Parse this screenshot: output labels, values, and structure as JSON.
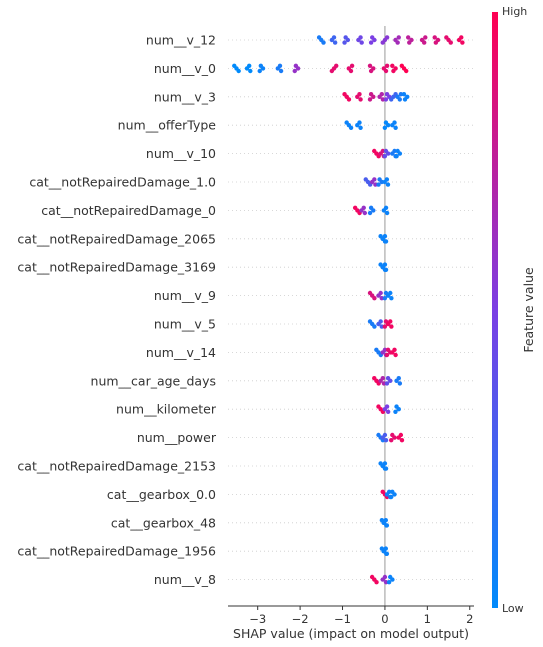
{
  "chart_data": {
    "type": "scatter",
    "subtype": "shap-beeswarm",
    "title": "",
    "xlabel": "SHAP value (impact on model output)",
    "xlim": [
      -3.7,
      2.1
    ],
    "xticks": [
      -3,
      -2,
      -1,
      0,
      1,
      2
    ],
    "colorbar": {
      "label": "Feature value",
      "high_label": "High",
      "low_label": "Low",
      "high_color": "#ff0052",
      "low_color": "#008afb"
    },
    "features": [
      {
        "name": "num__v_12",
        "points": [
          [
            -1.5,
            0.1
          ],
          [
            -1.2,
            0.25
          ],
          [
            -0.9,
            0.35
          ],
          [
            -0.6,
            0.45
          ],
          [
            -0.3,
            0.5
          ],
          [
            0,
            0.55
          ],
          [
            0.3,
            0.65
          ],
          [
            0.6,
            0.75
          ],
          [
            0.9,
            0.8
          ],
          [
            1.2,
            0.85
          ],
          [
            1.5,
            0.9
          ],
          [
            1.8,
            0.95
          ]
        ]
      },
      {
        "name": "num__v_0",
        "points": [
          [
            -3.5,
            0.0
          ],
          [
            -3.2,
            0.0
          ],
          [
            -2.9,
            0.05
          ],
          [
            -2.5,
            0.1
          ],
          [
            -2.1,
            0.6
          ],
          [
            -1.2,
            0.9
          ],
          [
            -0.8,
            0.9
          ],
          [
            -0.3,
            0.85
          ],
          [
            0,
            0.9
          ],
          [
            0.2,
            0.95
          ],
          [
            0.45,
            1.0
          ]
        ]
      },
      {
        "name": "num__v_3",
        "points": [
          [
            -0.9,
            0.95
          ],
          [
            -0.6,
            0.9
          ],
          [
            -0.3,
            0.8
          ],
          [
            -0.1,
            0.7
          ],
          [
            0.05,
            0.5
          ],
          [
            0.2,
            0.25
          ],
          [
            0.35,
            0.1
          ],
          [
            0.5,
            0.05
          ]
        ]
      },
      {
        "name": "num__offerType",
        "points": [
          [
            -0.85,
            0.05
          ],
          [
            -0.6,
            0.05
          ],
          [
            0.05,
            0.02
          ],
          [
            0.2,
            0.05
          ]
        ]
      },
      {
        "name": "num__v_10",
        "points": [
          [
            -0.2,
            0.95
          ],
          [
            -0.05,
            0.85
          ],
          [
            0.05,
            0.4
          ],
          [
            0.2,
            0.1
          ],
          [
            0.3,
            0.05
          ]
        ]
      },
      {
        "name": "cat__notRepairedDamage_1.0",
        "points": [
          [
            -0.4,
            0.3
          ],
          [
            -0.25,
            0.6
          ],
          [
            -0.1,
            0.1
          ],
          [
            0.02,
            0.05
          ]
        ]
      },
      {
        "name": "cat__notRepairedDamage_0",
        "points": [
          [
            -0.65,
            0.95
          ],
          [
            -0.5,
            0.6
          ],
          [
            -0.3,
            0.1
          ],
          [
            0.0,
            0.05
          ]
        ]
      },
      {
        "name": "cat__notRepairedDamage_2065",
        "points": [
          [
            -0.05,
            0.05
          ],
          [
            0.0,
            0.05
          ]
        ]
      },
      {
        "name": "cat__notRepairedDamage_3169",
        "points": [
          [
            -0.05,
            0.05
          ],
          [
            0.0,
            0.05
          ]
        ]
      },
      {
        "name": "num__v_9",
        "points": [
          [
            -0.3,
            0.85
          ],
          [
            -0.1,
            0.6
          ],
          [
            0.05,
            0.1
          ],
          [
            0.1,
            0.05
          ]
        ]
      },
      {
        "name": "num__v_5",
        "points": [
          [
            -0.3,
            0.1
          ],
          [
            -0.1,
            0.3
          ],
          [
            0.05,
            0.9
          ],
          [
            0.1,
            0.95
          ]
        ]
      },
      {
        "name": "num__v_14",
        "points": [
          [
            -0.15,
            0.1
          ],
          [
            0.0,
            0.6
          ],
          [
            0.1,
            0.9
          ],
          [
            0.2,
            0.95
          ]
        ]
      },
      {
        "name": "num__car_age_days",
        "points": [
          [
            -0.2,
            0.95
          ],
          [
            -0.05,
            0.7
          ],
          [
            0.1,
            0.4
          ],
          [
            0.3,
            0.1
          ]
        ]
      },
      {
        "name": "num__kilometer",
        "points": [
          [
            -0.1,
            0.95
          ],
          [
            0.05,
            0.5
          ],
          [
            0.3,
            0.05
          ]
        ]
      },
      {
        "name": "num__power",
        "points": [
          [
            -0.1,
            0.1
          ],
          [
            0.0,
            0.3
          ],
          [
            0.2,
            0.9
          ],
          [
            0.35,
            0.95
          ]
        ]
      },
      {
        "name": "cat__notRepairedDamage_2153",
        "points": [
          [
            -0.05,
            0.05
          ],
          [
            0.0,
            0.05
          ]
        ]
      },
      {
        "name": "cat__gearbox_0.0",
        "points": [
          [
            0.0,
            0.95
          ],
          [
            0.1,
            0.05
          ],
          [
            0.2,
            0.05
          ]
        ]
      },
      {
        "name": "cat__gearbox_48",
        "points": [
          [
            -0.02,
            0.05
          ],
          [
            0.02,
            0.05
          ]
        ]
      },
      {
        "name": "cat__notRepairedDamage_1956",
        "points": [
          [
            -0.02,
            0.05
          ],
          [
            0.02,
            0.05
          ]
        ]
      },
      {
        "name": "num__v_8",
        "points": [
          [
            -0.25,
            0.95
          ],
          [
            0.0,
            0.6
          ],
          [
            0.15,
            0.05
          ]
        ]
      }
    ]
  }
}
